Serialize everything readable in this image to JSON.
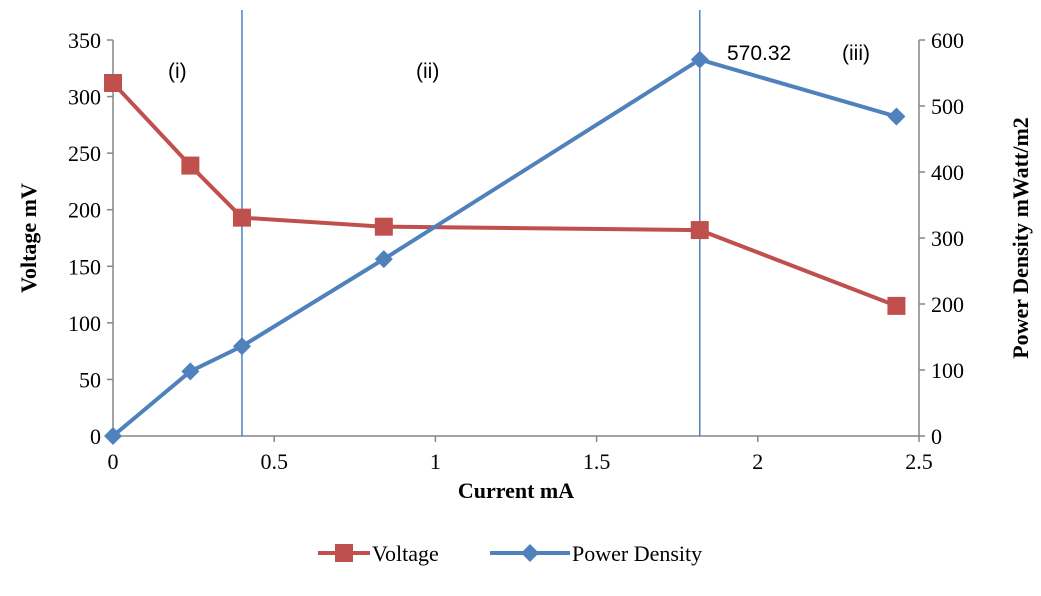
{
  "chart_data": {
    "type": "line",
    "xlabel": "Current mA",
    "ylabel_left": "Voltage mV",
    "ylabel_right": "Power Density mWatt/m2",
    "xlim": [
      0,
      2.5
    ],
    "ylim_left": [
      0,
      350
    ],
    "ylim_right": [
      0,
      600
    ],
    "x_ticks": [
      "0",
      "0.5",
      "1",
      "1.5",
      "2",
      "2.5"
    ],
    "y_left_ticks": [
      "0",
      "50",
      "100",
      "150",
      "200",
      "250",
      "300",
      "350"
    ],
    "y_right_ticks": [
      "0",
      "100",
      "200",
      "300",
      "400",
      "500",
      "600"
    ],
    "series": [
      {
        "name": "Voltage",
        "axis": "left",
        "color": "#c0504d",
        "marker": "square",
        "x": [
          0,
          0.24,
          0.4,
          0.84,
          1.82,
          2.43
        ],
        "values": [
          312,
          239,
          193,
          185,
          182,
          115
        ]
      },
      {
        "name": "Power Density",
        "axis": "right",
        "color": "#4f81bd",
        "marker": "diamond",
        "x": [
          0,
          0.24,
          0.4,
          0.84,
          1.82,
          2.43
        ],
        "values": [
          0,
          98,
          136,
          268,
          570.32,
          484
        ]
      }
    ],
    "vertical_lines": [
      0.4,
      1.82
    ],
    "vertical_line_color": "#4f81bd",
    "annotations": [
      "(i)",
      "(ii)",
      "(iii)",
      "570.32"
    ],
    "legend_position": "bottom",
    "grid": false
  }
}
